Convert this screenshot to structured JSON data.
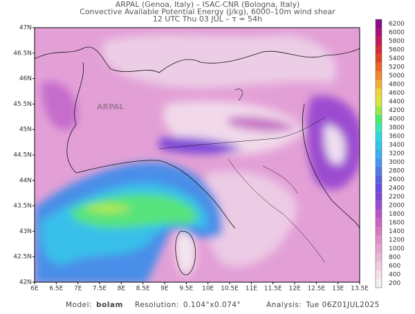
{
  "header": {
    "lines": [
      "ARPAL (Genoa, Italy)  –  ISAC-CNR (Bologna, Italy)",
      "Convective Available Potential Energy (J/kg), 6000–10m wind shear",
      "12 UTC Thu 03 JUL  –  τ = 54h"
    ]
  },
  "map": {
    "lat_labels": [
      "47N",
      "46.5N",
      "46N",
      "45.5N",
      "45N",
      "44.5N",
      "44N",
      "43.5N",
      "43N",
      "42.5N",
      "42N"
    ],
    "lon_labels": [
      "6E",
      "6.5E",
      "7E",
      "7.5E",
      "8E",
      "8.5E",
      "9E",
      "9.5E",
      "10E",
      "10.5E",
      "11E",
      "11.5E",
      "12E",
      "12.5E",
      "13E",
      "13.5E"
    ],
    "watermark": "ARPAL"
  },
  "colorbar": {
    "ticks": [
      200,
      400,
      600,
      800,
      1000,
      1200,
      1400,
      1600,
      1800,
      2000,
      2200,
      2400,
      2600,
      2800,
      3000,
      3200,
      3400,
      3600,
      3800,
      4000,
      4200,
      4400,
      4600,
      4800,
      5000,
      5200,
      5400,
      5600,
      5800,
      6000,
      6200
    ],
    "colors": [
      "#f2eef0",
      "#f6dfe9",
      "#f0cde0",
      "#ebb7d6",
      "#e7a4d0",
      "#e08fc9",
      "#d979c3",
      "#cc66c6",
      "#b855c9",
      "#9c4bd0",
      "#7e46d8",
      "#6a4be0",
      "#5a5fe6",
      "#4f7ae9",
      "#4596ee",
      "#3bb0ef",
      "#33c6ea",
      "#2fd8de",
      "#3ee6b0",
      "#4fe86c",
      "#9be845",
      "#d6e83c",
      "#f0d23a",
      "#f4ae33",
      "#f08a2c",
      "#ea6526",
      "#e04422",
      "#d42a3a",
      "#c01c5a",
      "#a6127a",
      "#8a0a8a"
    ]
  },
  "footer": {
    "items": [
      {
        "label": "Model:",
        "value": "bolam"
      },
      {
        "label": "Resolution:",
        "value": "0.104°x0.074°"
      },
      {
        "label": "Analysis:",
        "value": "Tue 06Z01JUL2025"
      }
    ]
  }
}
